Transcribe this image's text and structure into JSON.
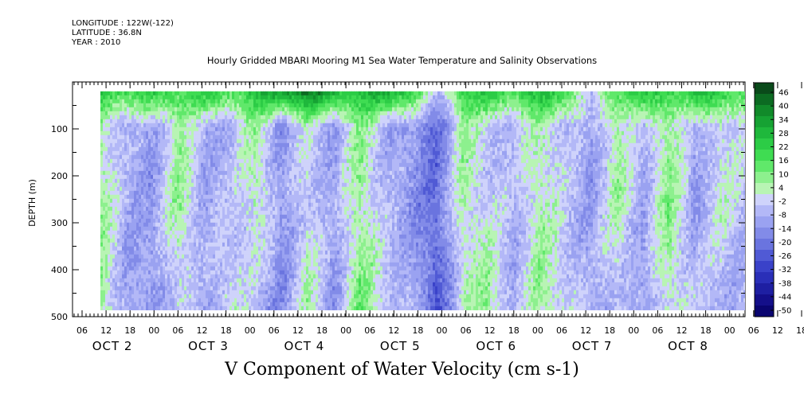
{
  "header": {
    "longitude": "LONGITUDE : 122W(-122)",
    "latitude": "LATITUDE : 36.8N",
    "year": "YEAR : 2010"
  },
  "chart_data": {
    "type": "heatmap",
    "title": "Hourly Gridded MBARI Mooring M1 Sea Water Temperature and Salinity Observations",
    "xlabel": "V Component of Water Velocity (cm s-1)",
    "ylabel": "DEPTH (m)",
    "y_range": [
      500,
      0
    ],
    "y_ticks": [
      100,
      200,
      300,
      400,
      500
    ],
    "data_depth_range": [
      20,
      490
    ],
    "x_hour_ticks": [
      "06",
      "12",
      "18",
      "00",
      "06",
      "12",
      "18",
      "00",
      "06",
      "12",
      "18",
      "00",
      "06",
      "12",
      "18",
      "00",
      "06",
      "12",
      "18",
      "00",
      "06",
      "12",
      "18",
      "00",
      "06",
      "12",
      "18",
      "00",
      "06",
      "12",
      "18",
      "00"
    ],
    "x_day_labels": [
      "OCT 2",
      "OCT 3",
      "OCT 4",
      "OCT 5",
      "OCT 6",
      "OCT 7",
      "OCT 8"
    ],
    "colorbar_levels": [
      "46",
      "40",
      "34",
      "28",
      "22",
      "16",
      "10",
      "4",
      "-2",
      "-8",
      "-14",
      "-20",
      "-26",
      "-32",
      "-38",
      "-44",
      "-50"
    ],
    "colorbar_colors": [
      "#0a4a1a",
      "#0c6b22",
      "#118a2a",
      "#16a233",
      "#1fb83c",
      "#2ccc46",
      "#3fdc52",
      "#60e86a",
      "#8df08e",
      "#b8f4b4",
      "#cfd3fb",
      "#b3b8f7",
      "#9aa2f1",
      "#828be8",
      "#6a74df",
      "#505ad5",
      "#3a42c9",
      "#2a2fb8",
      "#1e1fa2",
      "#140f8a",
      "#0a0570"
    ],
    "grid": false,
    "legend": "right",
    "series": [
      {
        "name": "",
        "time_hours": 0,
        "values": []
      }
    ],
    "column_profiles": [
      {
        "x": "Oct 1 12:00",
        "surface": 18,
        "mid": 2,
        "deep": 4
      },
      {
        "x": "Oct 1 18:00",
        "surface": 16,
        "mid": -12,
        "deep": -14
      },
      {
        "x": "Oct 2 00:00",
        "surface": 15,
        "mid": -14,
        "deep": -16
      },
      {
        "x": "Oct 2 06:00",
        "surface": 16,
        "mid": 4,
        "deep": -6
      },
      {
        "x": "Oct 2 12:00",
        "surface": 17,
        "mid": -12,
        "deep": -14
      },
      {
        "x": "Oct 2 18:00",
        "surface": 15,
        "mid": -10,
        "deep": 0
      },
      {
        "x": "Oct 3 00:00",
        "surface": 18,
        "mid": 2,
        "deep": -12
      },
      {
        "x": "Oct 3 06:00",
        "surface": 30,
        "mid": -16,
        "deep": -18
      },
      {
        "x": "Oct 3 12:00",
        "surface": 34,
        "mid": -4,
        "deep": 2
      },
      {
        "x": "Oct 3 18:00",
        "surface": 24,
        "mid": -14,
        "deep": -16
      },
      {
        "x": "Oct 4 00:00",
        "surface": 22,
        "mid": 4,
        "deep": 8
      },
      {
        "x": "Oct 4 06:00",
        "surface": 26,
        "mid": -10,
        "deep": -4
      },
      {
        "x": "Oct 4 12:00",
        "surface": 20,
        "mid": -16,
        "deep": -10
      },
      {
        "x": "Oct 4 18:00",
        "surface": -14,
        "mid": -24,
        "deep": -30
      },
      {
        "x": "Oct 5 00:00",
        "surface": 16,
        "mid": 2,
        "deep": -4
      },
      {
        "x": "Oct 5 06:00",
        "surface": 18,
        "mid": -6,
        "deep": 6
      },
      {
        "x": "Oct 5 12:00",
        "surface": 16,
        "mid": -10,
        "deep": -12
      },
      {
        "x": "Oct 5 18:00",
        "surface": 20,
        "mid": 2,
        "deep": 4
      },
      {
        "x": "Oct 6 00:00",
        "surface": 18,
        "mid": -8,
        "deep": -4
      },
      {
        "x": "Oct 6 06:00",
        "surface": -10,
        "mid": -14,
        "deep": -12
      },
      {
        "x": "Oct 6 12:00",
        "surface": 16,
        "mid": 2,
        "deep": -8
      },
      {
        "x": "Oct 6 18:00",
        "surface": 18,
        "mid": -12,
        "deep": -16
      },
      {
        "x": "Oct 7 00:00",
        "surface": 16,
        "mid": 6,
        "deep": 0
      },
      {
        "x": "Oct 7 06:00",
        "surface": 20,
        "mid": -14,
        "deep": -8
      },
      {
        "x": "Oct 7 12:00",
        "surface": 18,
        "mid": -2,
        "deep": -10
      },
      {
        "x": "Oct 7 18:00",
        "surface": 14,
        "mid": -8,
        "deep": -14
      }
    ]
  }
}
